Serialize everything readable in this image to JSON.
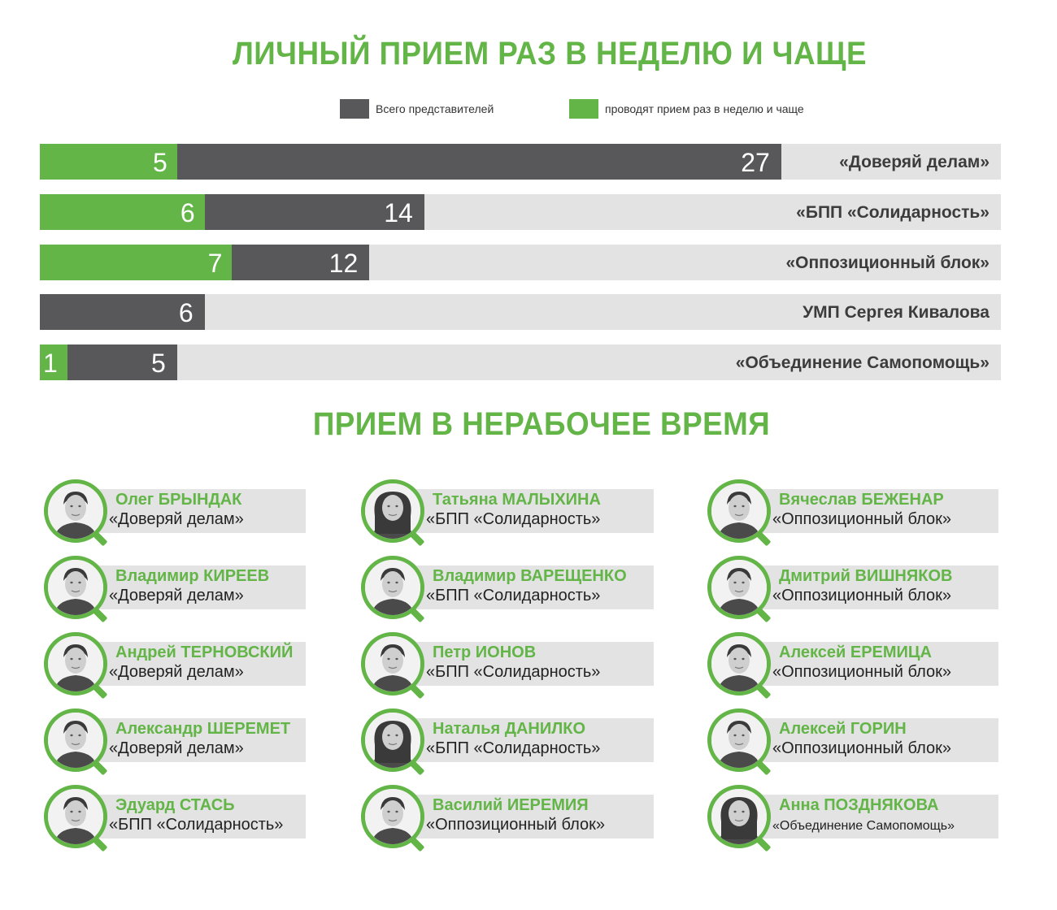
{
  "titles": {
    "top": "ЛИЧНЫЙ ПРИЕМ РАЗ В НЕДЕЛЮ И ЧАЩЕ",
    "bottom": "ПРИЕМ В НЕРАБОЧЕЕ ВРЕМЯ"
  },
  "colors": {
    "green": "#62b546",
    "dark": "#58585a",
    "track": "#e3e3e4"
  },
  "chart_data": {
    "type": "bar",
    "title": "ЛИЧНЫЙ ПРИЕМ РАЗ В НЕДЕЛЮ И ЧАЩЕ",
    "legend": [
      "Всего представителей",
      "проводят прием раз в неделю и чаще"
    ],
    "legend_position": "top",
    "categories": [
      "«Доверяй делам»",
      "«БПП «Солидарность»",
      "«Оппозиционный блок»",
      "УМП Сергея Кивалова",
      "«Объединение Самопомощь»"
    ],
    "series": [
      {
        "name": "Всего представителей",
        "values": [
          27,
          14,
          12,
          6,
          5
        ]
      },
      {
        "name": "проводят прием раз в неделю и чаще",
        "values": [
          5,
          6,
          7,
          null,
          1
        ]
      }
    ],
    "xlim": [
      0,
      35
    ]
  },
  "people": [
    {
      "name": "Олег БРЫНДАК",
      "party": "«Доверяй делам»"
    },
    {
      "name": "Владимир КИРЕЕВ",
      "party": "«Доверяй делам»"
    },
    {
      "name": "Андрей ТЕРНОВСКИЙ",
      "party": "«Доверяй делам»"
    },
    {
      "name": "Александр ШЕРЕМЕТ",
      "party": "«Доверяй делам»"
    },
    {
      "name": "Эдуард СТАСЬ",
      "party": "«БПП «Солидарность»"
    },
    {
      "name": "Татьяна МАЛЫХИНА",
      "party": "«БПП «Солидарность»"
    },
    {
      "name": "Владимир ВАРЕЩЕНКО",
      "party": "«БПП «Солидарность»"
    },
    {
      "name": "Петр ИОНОВ",
      "party": "«БПП «Солидарность»"
    },
    {
      "name": "Наталья ДАНИЛКО",
      "party": "«БПП «Солидарность»"
    },
    {
      "name": "Василий ИЕРЕМИЯ",
      "party": "«Оппозиционный блок»"
    },
    {
      "name": "Вячеслав БЕЖЕНАР",
      "party": "«Оппозиционный блок»"
    },
    {
      "name": "Дмитрий ВИШНЯКОВ",
      "party": "«Оппозиционный блок»"
    },
    {
      "name": "Алексей ЕРЕМИЦА",
      "party": "«Оппозиционный блок»"
    },
    {
      "name": "Алексей ГОРИН",
      "party": "«Оппозиционный блок»"
    },
    {
      "name": "Анна ПОЗДНЯКОВА",
      "party": "«Объединение Самопомощь»"
    }
  ]
}
